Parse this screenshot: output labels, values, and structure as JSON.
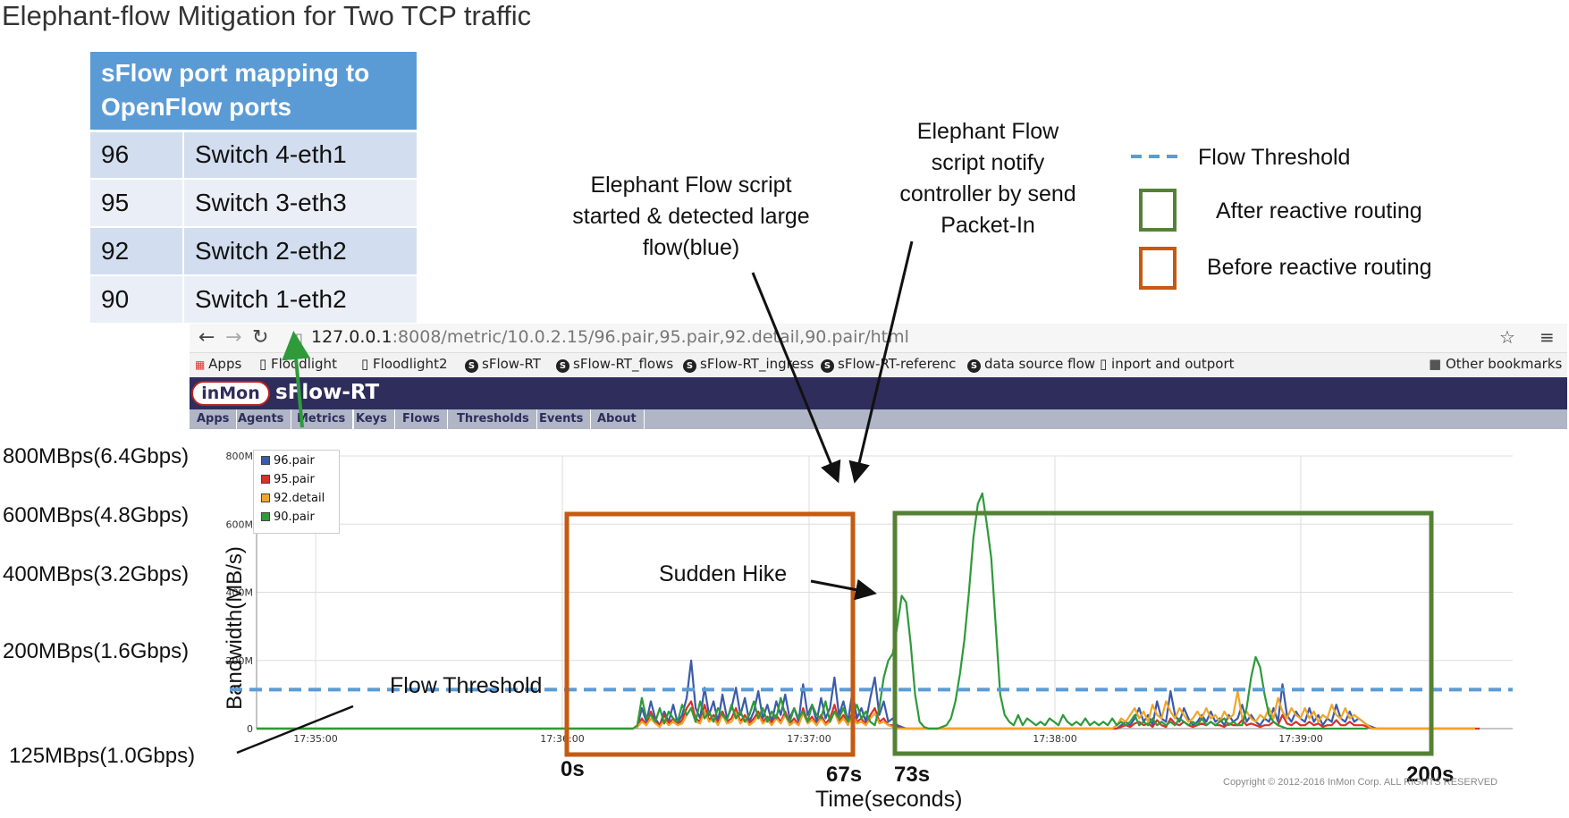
{
  "title": "Elephant-flow Mitigation for Two TCP traffic",
  "mapping_table": {
    "header": "sFlow port mapping to OpenFlow ports",
    "rows": [
      {
        "port": "96",
        "mapping": "Switch 4-eth1"
      },
      {
        "port": "95",
        "mapping": "Switch 3-eth3"
      },
      {
        "port": "92",
        "mapping": "Switch 2-eth2"
      },
      {
        "port": "90",
        "mapping": "Switch 1-eth2"
      }
    ]
  },
  "browser": {
    "url_host": "127.0.0.1",
    "url_path": ":8008/metric/10.0.2.15/96.pair,95.pair,92.detail,90.pair/html",
    "bookmarks": [
      "Apps",
      "Floodlight",
      "Floodlight2",
      "sFlow-RT",
      "sFlow-RT_flows",
      "sFlow-RT_ingress",
      "sFlow-RT-referenc",
      "data source flow",
      "inport and outport",
      "Other bookmarks"
    ],
    "logo": "inMon",
    "brand": "sFlow-RT",
    "tabs": [
      "Apps",
      "Agents",
      "Metrics",
      "Keys",
      "Flows",
      "Thresholds",
      "Events",
      "About"
    ],
    "active_tab": "Metrics",
    "copyright": "Copyright © 2012-2016 InMon Corp. ALL RIGHTS RESERVED"
  },
  "annotations": {
    "script_started": "Elephant Flow script started & detected large flow(blue)",
    "notify_controller": "Elephant Flow script notify controller by send Packet-In",
    "sudden_hike": "Sudden Hike",
    "flow_threshold": "Flow Threshold",
    "left_labels": [
      "800MBps(6.4Gbps)",
      "600MBps(4.8Gbps)",
      "400MBps(3.2Gbps)",
      "200MBps(1.6Gbps)",
      "125MBps(1.0Gbps)"
    ],
    "seconds": [
      "0s",
      "67s",
      "73s",
      "200s"
    ],
    "x_title": "Time(seconds)"
  },
  "legend_right": {
    "threshold": "Flow Threshold",
    "after": "After reactive routing",
    "before": "Before reactive routing",
    "colors": {
      "threshold": "#5b9bd5",
      "after": "#548235",
      "before": "#c55a11"
    }
  },
  "chart_data": {
    "type": "line",
    "ylabel": "Bandwidth(MB/s)",
    "y_ticks": [
      "0",
      "200M",
      "400M",
      "600M",
      "800M"
    ],
    "ylim": [
      0,
      800
    ],
    "x_ticks": [
      "17:35:00",
      "17:36:00",
      "17:37:00",
      "17:38:00",
      "17:39:00"
    ],
    "threshold": 125,
    "series": [
      {
        "name": "96.pair",
        "color": "#3b5ba8",
        "values": [
          0,
          0,
          0,
          0,
          0,
          0,
          0,
          0,
          0,
          0,
          0,
          0,
          0,
          0,
          0,
          0,
          0,
          0,
          0,
          0,
          0,
          0,
          0,
          0,
          0,
          0,
          0,
          0,
          0,
          0,
          0,
          0,
          0,
          0,
          0,
          0,
          0,
          0,
          0,
          0,
          0,
          0,
          0,
          0,
          0,
          0,
          0,
          0,
          0,
          0,
          0,
          0,
          0,
          0,
          0,
          0,
          0,
          0,
          0,
          0,
          0,
          0,
          0,
          0,
          0,
          0,
          0,
          0,
          0,
          0,
          0,
          0,
          0,
          0,
          0,
          0,
          0,
          0,
          0,
          0,
          0,
          0,
          0,
          0,
          0,
          5,
          60,
          20,
          80,
          30,
          10,
          50,
          20,
          70,
          15,
          40,
          90,
          200,
          60,
          30,
          120,
          40,
          80,
          20,
          100,
          30,
          60,
          120,
          40,
          90,
          20,
          50,
          110,
          30,
          70,
          20,
          80,
          40,
          100,
          30,
          60,
          20,
          130,
          40,
          70,
          20,
          90,
          30,
          60,
          150,
          40,
          80,
          20,
          110,
          30,
          60,
          20,
          90,
          150,
          40,
          80,
          20,
          30,
          10,
          5,
          0,
          0,
          0,
          0,
          0,
          0,
          0,
          0,
          0,
          0,
          0,
          0,
          0,
          0,
          0,
          0,
          0,
          0,
          0,
          0,
          0,
          0,
          0,
          0,
          0,
          0,
          0,
          0,
          0,
          0,
          0,
          0,
          0,
          0,
          0,
          0,
          0,
          0,
          0,
          0,
          0,
          0,
          0,
          0,
          0,
          0,
          0,
          0,
          10,
          20,
          10,
          30,
          60,
          20,
          40,
          10,
          80,
          30,
          20,
          110,
          40,
          20,
          60,
          30,
          10,
          20,
          40,
          20,
          50,
          20,
          30,
          10,
          40,
          20,
          30,
          70,
          20,
          40,
          20,
          10,
          30,
          20,
          60,
          20,
          130,
          40,
          20,
          50,
          30,
          20,
          60,
          20,
          40,
          10,
          30,
          20,
          70,
          30,
          20,
          50,
          20,
          30,
          20,
          10,
          5,
          0,
          0,
          0,
          0,
          0,
          0,
          0,
          0,
          0,
          0,
          0,
          0,
          0,
          0,
          0,
          0,
          0,
          0,
          0,
          0,
          0,
          0,
          0
        ]
      },
      {
        "name": "95.pair",
        "color": "#d9302a",
        "values": [
          0,
          0,
          0,
          0,
          0,
          0,
          0,
          0,
          0,
          0,
          0,
          0,
          0,
          0,
          0,
          0,
          0,
          0,
          0,
          0,
          0,
          0,
          0,
          0,
          0,
          0,
          0,
          0,
          0,
          0,
          0,
          0,
          0,
          0,
          0,
          0,
          0,
          0,
          0,
          0,
          0,
          0,
          0,
          0,
          0,
          0,
          0,
          0,
          0,
          0,
          0,
          0,
          0,
          0,
          0,
          0,
          0,
          0,
          0,
          0,
          0,
          0,
          0,
          0,
          0,
          0,
          0,
          0,
          0,
          0,
          0,
          0,
          0,
          0,
          0,
          0,
          0,
          0,
          0,
          0,
          0,
          0,
          0,
          0,
          0,
          5,
          30,
          10,
          50,
          20,
          10,
          40,
          15,
          30,
          10,
          25,
          60,
          80,
          30,
          20,
          70,
          25,
          40,
          15,
          50,
          20,
          30,
          60,
          20,
          40,
          15,
          30,
          50,
          20,
          35,
          15,
          40,
          20,
          50,
          15,
          30,
          10,
          60,
          20,
          35,
          10,
          40,
          15,
          30,
          70,
          20,
          40,
          15,
          50,
          20,
          30,
          10,
          40,
          60,
          20,
          30,
          10,
          10,
          5,
          0,
          0,
          0,
          0,
          0,
          0,
          0,
          0,
          0,
          0,
          0,
          0,
          0,
          0,
          0,
          0,
          0,
          0,
          0,
          0,
          0,
          0,
          0,
          0,
          0,
          0,
          0,
          0,
          0,
          0,
          0,
          0,
          0,
          0,
          0,
          0,
          0,
          0,
          0,
          0,
          0,
          0,
          0,
          0,
          0,
          0,
          0,
          0,
          0,
          5,
          10,
          5,
          15,
          20,
          10,
          15,
          5,
          25,
          10,
          5,
          30,
          15,
          10,
          20,
          10,
          5,
          10,
          15,
          10,
          20,
          10,
          10,
          5,
          15,
          10,
          10,
          25,
          10,
          15,
          10,
          5,
          10,
          10,
          20,
          10,
          40,
          15,
          10,
          20,
          10,
          10,
          20,
          10,
          15,
          5,
          10,
          10,
          25,
          10,
          10,
          20,
          10,
          10,
          10,
          5,
          0,
          0,
          0,
          0,
          0,
          0,
          0,
          0,
          0,
          0,
          0,
          0,
          0,
          0,
          0,
          0,
          0,
          0,
          0,
          0,
          0,
          0,
          0,
          0,
          0
        ]
      },
      {
        "name": "92.detail",
        "color": "#f0a52a",
        "values": [
          0,
          0,
          0,
          0,
          0,
          0,
          0,
          0,
          0,
          0,
          0,
          0,
          0,
          0,
          0,
          0,
          0,
          0,
          0,
          0,
          0,
          0,
          0,
          0,
          0,
          0,
          0,
          0,
          0,
          0,
          0,
          0,
          0,
          0,
          0,
          0,
          0,
          0,
          0,
          0,
          0,
          0,
          0,
          0,
          0,
          0,
          0,
          0,
          0,
          0,
          0,
          0,
          0,
          0,
          0,
          0,
          0,
          0,
          0,
          0,
          0,
          0,
          0,
          0,
          0,
          0,
          0,
          0,
          0,
          0,
          0,
          0,
          0,
          0,
          0,
          0,
          0,
          0,
          0,
          0,
          0,
          0,
          0,
          0,
          0,
          5,
          20,
          10,
          30,
          15,
          5,
          25,
          10,
          20,
          10,
          15,
          40,
          60,
          20,
          15,
          50,
          20,
          30,
          10,
          40,
          15,
          20,
          45,
          15,
          30,
          10,
          20,
          40,
          15,
          25,
          10,
          30,
          15,
          40,
          10,
          20,
          10,
          45,
          15,
          25,
          10,
          30,
          10,
          20,
          50,
          15,
          30,
          10,
          40,
          15,
          20,
          10,
          30,
          45,
          15,
          20,
          10,
          5,
          0,
          0,
          0,
          0,
          0,
          0,
          0,
          0,
          0,
          0,
          0,
          0,
          0,
          0,
          0,
          0,
          0,
          0,
          0,
          0,
          0,
          0,
          0,
          0,
          0,
          0,
          0,
          0,
          0,
          0,
          0,
          0,
          0,
          0,
          0,
          0,
          0,
          0,
          0,
          0,
          0,
          0,
          0,
          0,
          0,
          0,
          0,
          0,
          0,
          10,
          30,
          20,
          40,
          60,
          30,
          50,
          20,
          70,
          40,
          30,
          80,
          50,
          30,
          60,
          40,
          20,
          30,
          50,
          30,
          60,
          30,
          40,
          20,
          50,
          30,
          40,
          110,
          30,
          50,
          30,
          20,
          40,
          30,
          60,
          30,
          90,
          50,
          30,
          60,
          40,
          30,
          60,
          30,
          50,
          20,
          40,
          30,
          70,
          40,
          30,
          60,
          30,
          40,
          30,
          20,
          10,
          0,
          0,
          0,
          0,
          0,
          0,
          0,
          0,
          0,
          0,
          0,
          0,
          0,
          0,
          0,
          0,
          0,
          0,
          0,
          0,
          0,
          0,
          0,
          0
        ]
      },
      {
        "name": "90.pair",
        "color": "#2e9a3a",
        "values": [
          0,
          0,
          0,
          0,
          0,
          0,
          0,
          0,
          0,
          0,
          0,
          0,
          0,
          0,
          0,
          0,
          0,
          0,
          0,
          0,
          0,
          0,
          0,
          0,
          0,
          0,
          0,
          0,
          0,
          0,
          0,
          0,
          0,
          0,
          0,
          0,
          0,
          0,
          0,
          0,
          0,
          0,
          0,
          0,
          0,
          0,
          0,
          0,
          0,
          0,
          0,
          0,
          0,
          0,
          0,
          0,
          0,
          0,
          0,
          0,
          0,
          0,
          0,
          0,
          0,
          0,
          0,
          0,
          0,
          0,
          0,
          0,
          0,
          0,
          0,
          0,
          0,
          0,
          0,
          0,
          0,
          0,
          0,
          0,
          0,
          10,
          90,
          30,
          40,
          20,
          60,
          15,
          50,
          30,
          20,
          70,
          40,
          60,
          20,
          80,
          30,
          50,
          20,
          60,
          40,
          25,
          70,
          30,
          50,
          20,
          40,
          80,
          30,
          60,
          20,
          50,
          30,
          90,
          40,
          20,
          60,
          30,
          50,
          20,
          70,
          40,
          30,
          80,
          20,
          50,
          30,
          60,
          20,
          40,
          70,
          30,
          50,
          20,
          10,
          60,
          150,
          200,
          220,
          300,
          390,
          370,
          250,
          100,
          20,
          5,
          0,
          0,
          0,
          5,
          10,
          30,
          80,
          160,
          260,
          400,
          560,
          660,
          690,
          600,
          500,
          300,
          100,
          40,
          20,
          10,
          40,
          10,
          30,
          20,
          10,
          20,
          10,
          30,
          20,
          10,
          40,
          20,
          10,
          20,
          10,
          30,
          10,
          20,
          10,
          20,
          10,
          30,
          10,
          20,
          10,
          20,
          40,
          10,
          20,
          10,
          30,
          10,
          20,
          10,
          20,
          10,
          30,
          20,
          10,
          20,
          10,
          30,
          10,
          20,
          10,
          20,
          30,
          10,
          20,
          10,
          10,
          60,
          150,
          210,
          180,
          100,
          40,
          20,
          10,
          5,
          0,
          0,
          0,
          0,
          0,
          0,
          0,
          0,
          0,
          0,
          0,
          0,
          0,
          0,
          0,
          0,
          0,
          0,
          0
        ]
      }
    ]
  }
}
